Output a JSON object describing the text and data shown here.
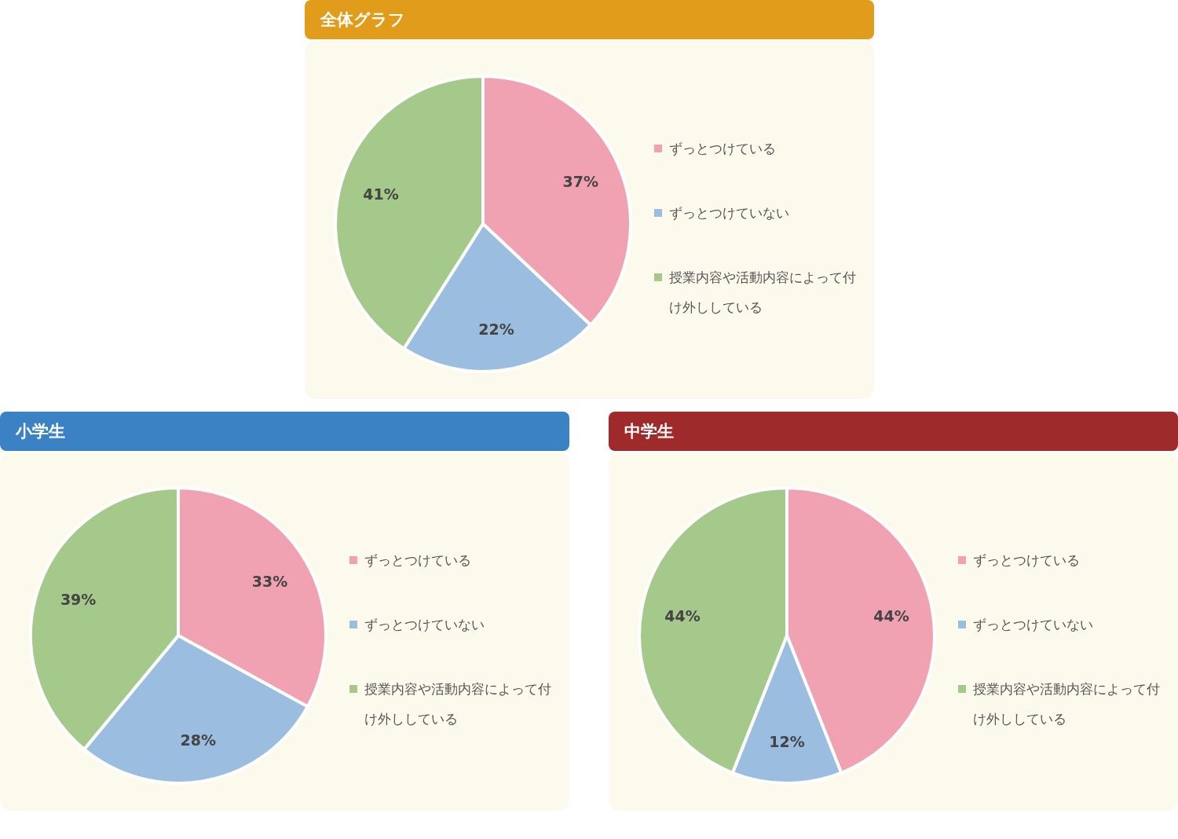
{
  "chart_data": [
    {
      "type": "pie",
      "title": "全体グラフ",
      "categories": [
        "ずっとつけている",
        "ずっとつけていない",
        "授業内容や活動内容によって付け外ししている"
      ],
      "values": [
        37,
        22,
        41
      ],
      "value_labels": [
        "37%",
        "22%",
        "41%"
      ],
      "colors": [
        "#f0a2b3",
        "#9bbde0",
        "#a5c98a"
      ],
      "legend": "right"
    },
    {
      "type": "pie",
      "title": "小学生",
      "categories": [
        "ずっとつけている",
        "ずっとつけていない",
        "授業内容や活動内容によって付け外ししている"
      ],
      "values": [
        33,
        28,
        39
      ],
      "value_labels": [
        "33%",
        "28%",
        "39%"
      ],
      "colors": [
        "#f0a2b3",
        "#9bbde0",
        "#a5c98a"
      ],
      "legend": "right"
    },
    {
      "type": "pie",
      "title": "中学生",
      "categories": [
        "ずっとつけている",
        "ずっとつけていない",
        "授業内容や活動内容によって付け外ししている"
      ],
      "values": [
        44,
        12,
        44
      ],
      "value_labels": [
        "44%",
        "12%",
        "44%"
      ],
      "colors": [
        "#f0a2b3",
        "#9bbde0",
        "#a5c98a"
      ],
      "legend": "right"
    }
  ]
}
